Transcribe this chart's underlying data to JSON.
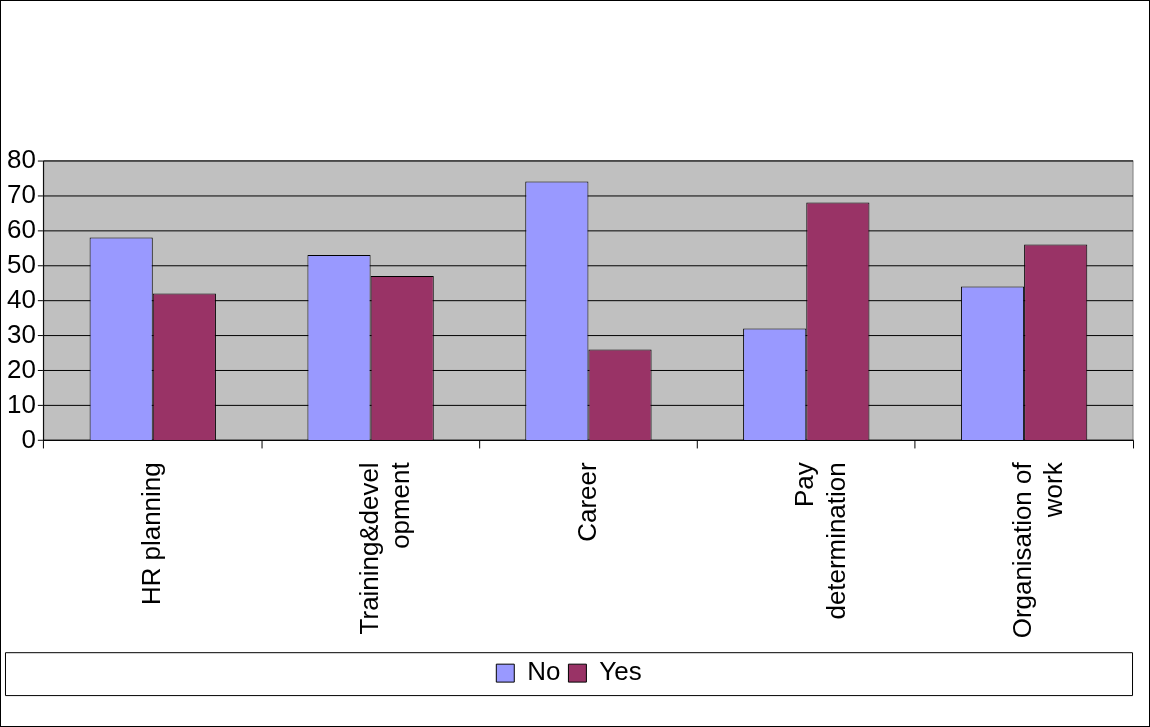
{
  "chart_data": {
    "type": "bar",
    "categories": [
      "HR planning",
      "Training&development",
      "Career",
      "Pay determination",
      "Organisation of work"
    ],
    "series": [
      {
        "name": "No",
        "color": "#9999ff",
        "values": [
          58,
          53,
          74,
          32,
          44
        ]
      },
      {
        "name": "Yes",
        "color": "#993366",
        "values": [
          42,
          47,
          26,
          68,
          56
        ]
      }
    ],
    "ylim": [
      0,
      80
    ],
    "yticks": [
      0,
      10,
      20,
      30,
      40,
      50,
      60,
      70,
      80
    ],
    "grid": "y",
    "legend": "bottom"
  }
}
